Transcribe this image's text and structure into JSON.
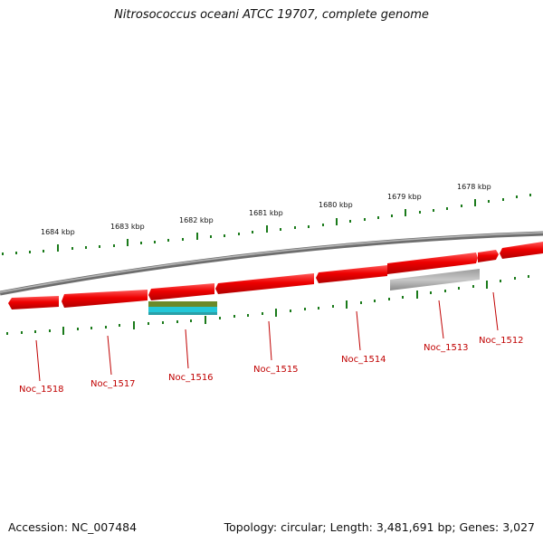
{
  "title": "Nitrosococcus oceani ATCC 19707, complete genome",
  "footer": {
    "accession": "Accession: NC_007484",
    "summary": "Topology: circular; Length: 3,481,691 bp; Genes: 3,027"
  },
  "kbp_labels": [
    "1684 kbp",
    "1683 kbp",
    "1682 kbp",
    "1681 kbp",
    "1680 kbp",
    "1679 kbp",
    "1678 kbp"
  ],
  "genes": [
    "Noc_1518",
    "Noc_1517",
    "Noc_1516",
    "Noc_1515",
    "Noc_1514",
    "Noc_1513",
    "Noc_1512"
  ],
  "colors": {
    "cds": "#ee0000",
    "pseudo": "#b0b0b0",
    "tick": "#1a7a1a",
    "backbone": "#808080",
    "label": "#c00000",
    "domain_green": "#6a8a2a",
    "domain_cyan": "#22c8d8"
  }
}
